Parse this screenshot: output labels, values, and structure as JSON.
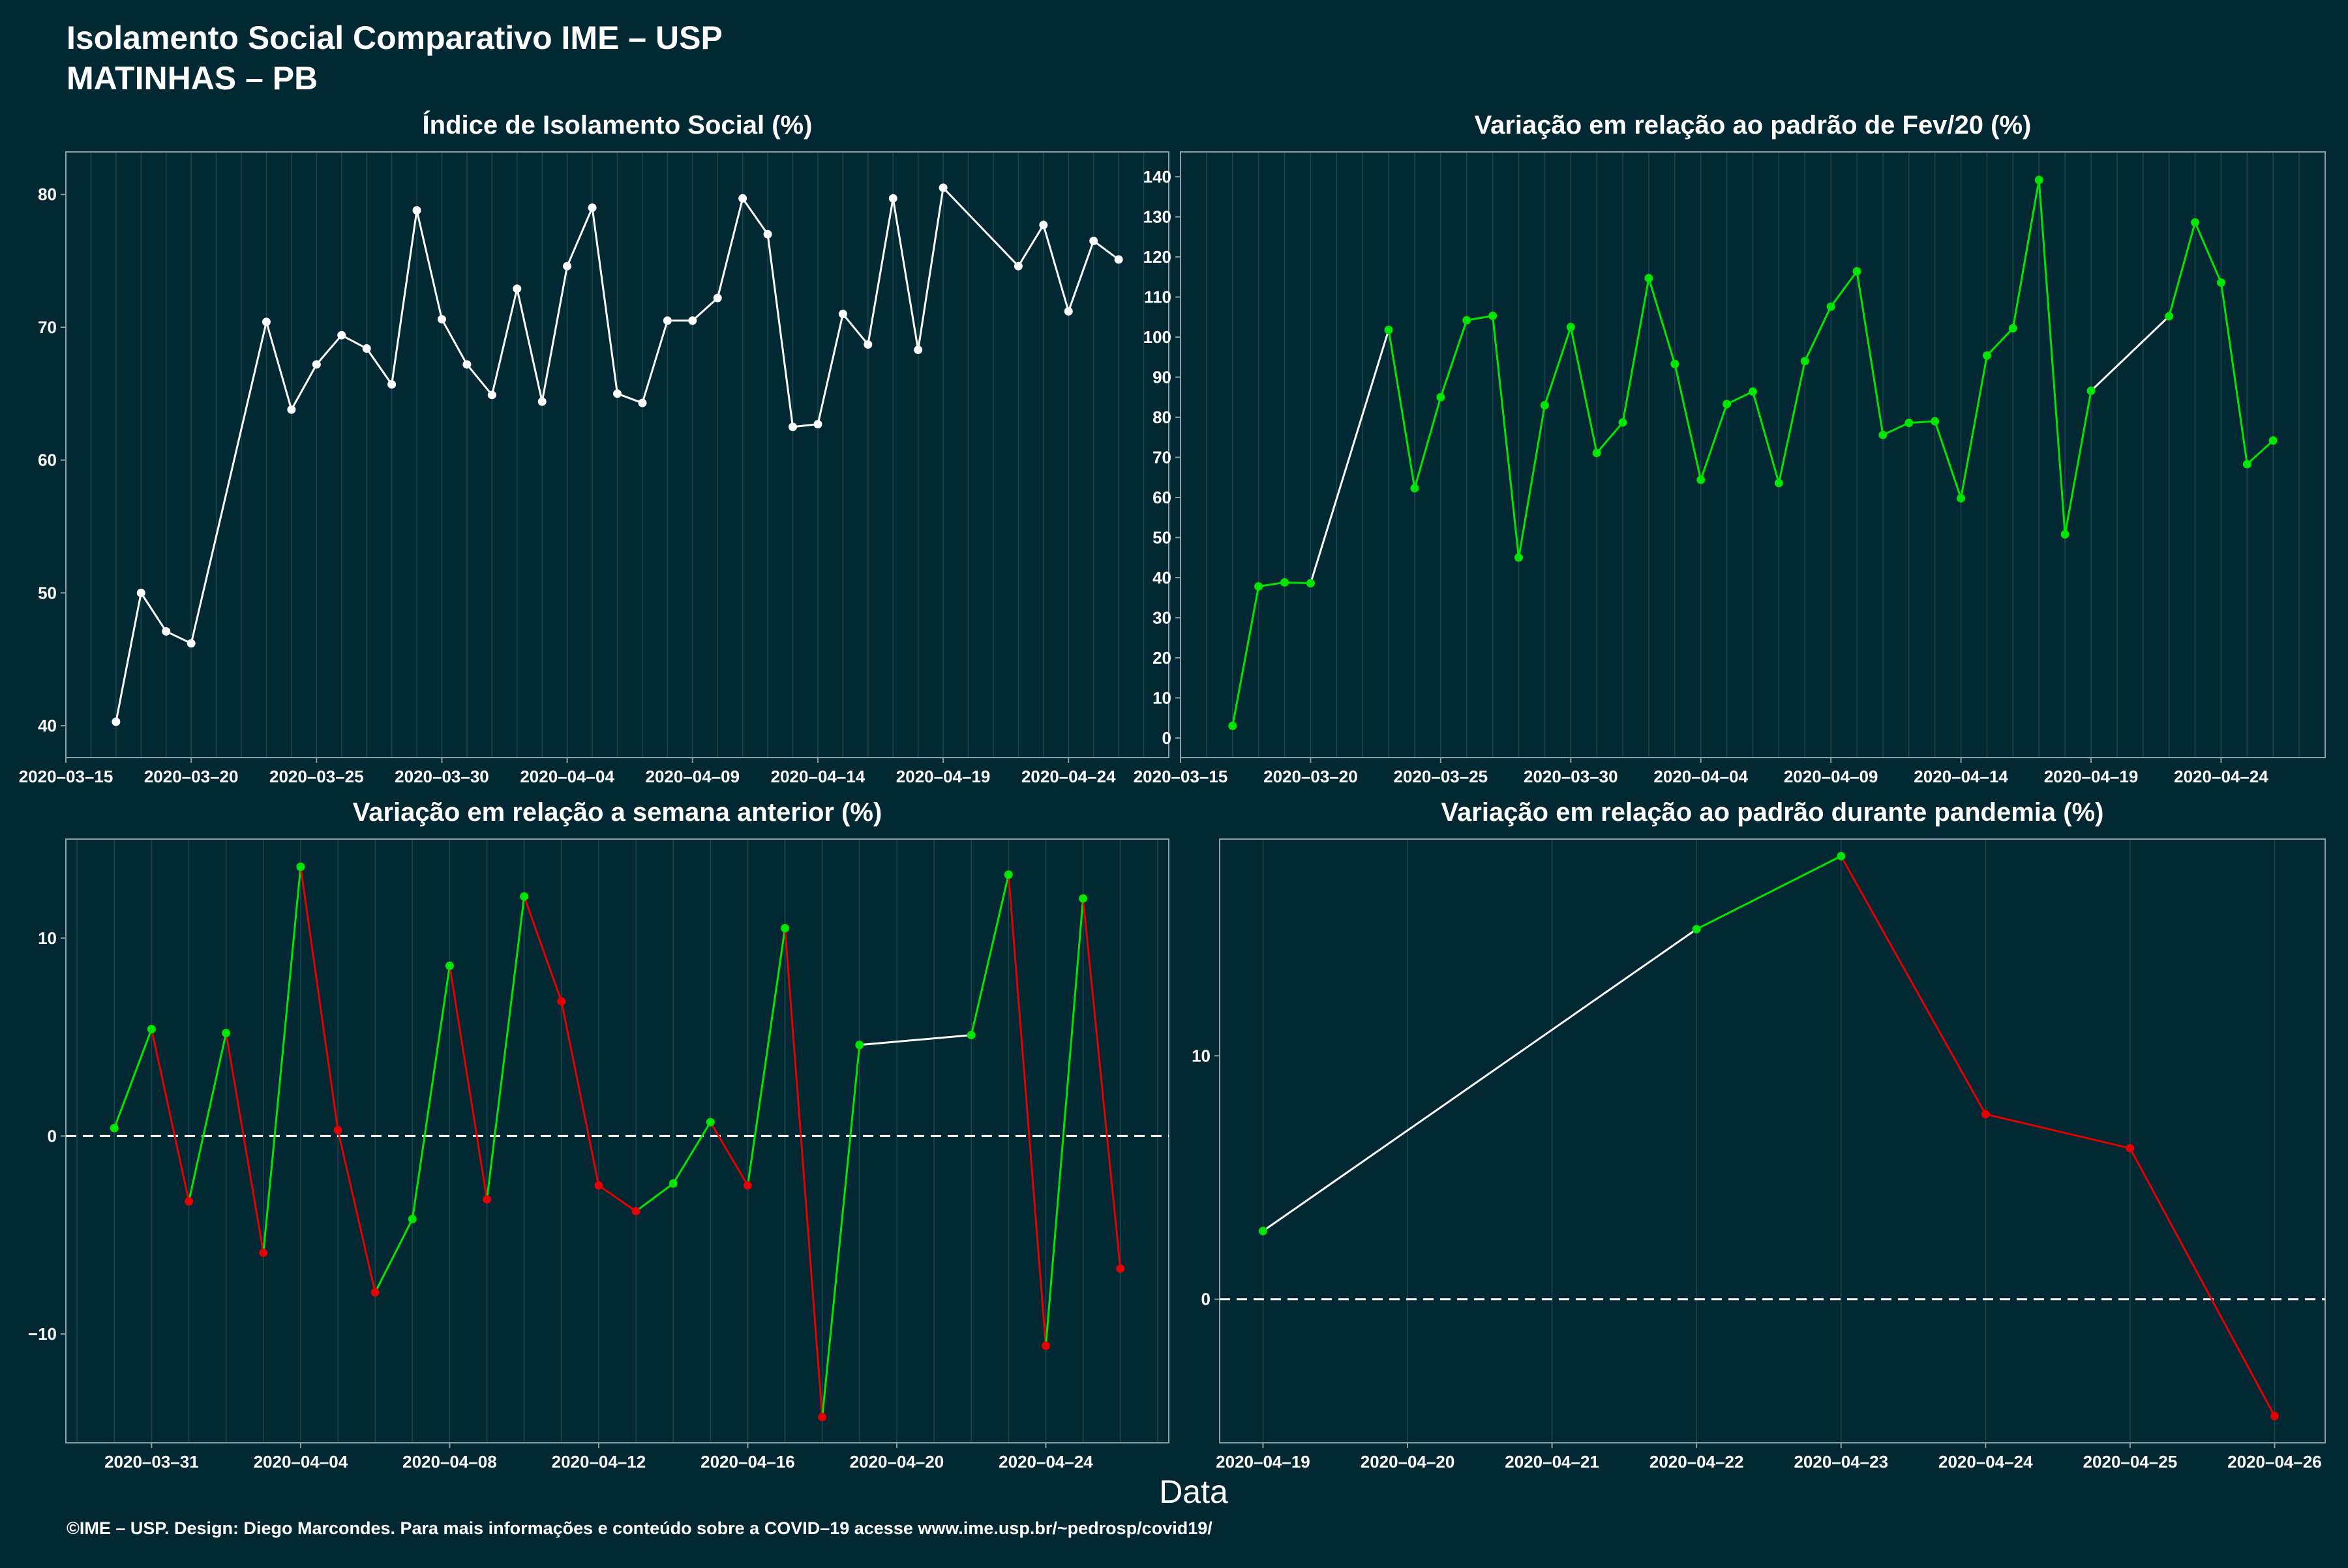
{
  "header": {
    "title": "Isolamento Social Comparativo IME – USP",
    "subtitle": "MATINHAS – PB"
  },
  "xlabel": "Data",
  "footer": "©IME – USP. Design: Diego Marcondes. Para mais informações e conteúdo sobre a COVID–19 acesse www.ime.usp.br/~pedrosp/covid19/",
  "colors": {
    "background": "#022833",
    "line": "#ffffff",
    "positive": "#00e600",
    "negative": "#e60000",
    "axis_text": "#ffffff",
    "grid": "#1d4550"
  },
  "chart_data": [
    {
      "type": "line",
      "title": "Índice de Isolamento Social (%)",
      "x": [
        "2020-03-17",
        "2020-03-18",
        "2020-03-19",
        "2020-03-20",
        "2020-03-23",
        "2020-03-24",
        "2020-03-25",
        "2020-03-26",
        "2020-03-27",
        "2020-03-28",
        "2020-03-29",
        "2020-03-30",
        "2020-03-31",
        "2020-04-01",
        "2020-04-02",
        "2020-04-03",
        "2020-04-04",
        "2020-04-05",
        "2020-04-06",
        "2020-04-07",
        "2020-04-08",
        "2020-04-09",
        "2020-04-10",
        "2020-04-11",
        "2020-04-12",
        "2020-04-13",
        "2020-04-14",
        "2020-04-15",
        "2020-04-16",
        "2020-04-17",
        "2020-04-18",
        "2020-04-19",
        "2020-04-22",
        "2020-04-23",
        "2020-04-24",
        "2020-04-25",
        "2020-04-26"
      ],
      "y": [
        40.3,
        50.0,
        47.1,
        46.2,
        70.4,
        63.8,
        67.2,
        69.4,
        68.4,
        65.7,
        78.8,
        70.6,
        67.2,
        64.9,
        72.9,
        64.4,
        74.6,
        79.0,
        65.0,
        64.3,
        70.5,
        70.5,
        72.2,
        79.7,
        77.0,
        62.5,
        62.7,
        71.0,
        68.7,
        79.7,
        68.3,
        80.5,
        74.6,
        77.7,
        71.2,
        76.5,
        75.1
      ],
      "xlim": [
        "2020-03-15",
        "2020-04-28"
      ],
      "ylim": [
        37.6,
        83.2
      ],
      "xticks": [
        "2020-03-15",
        "2020-03-20",
        "2020-03-25",
        "2020-03-30",
        "2020-04-04",
        "2020-04-09",
        "2020-04-14",
        "2020-04-19",
        "2020-04-24"
      ],
      "yticks": [
        40,
        50,
        60,
        70,
        80
      ]
    },
    {
      "type": "line",
      "title": "Variação em relação ao padrão de Fev/20 (%)",
      "x": [
        "2020-03-17",
        "2020-03-18",
        "2020-03-19",
        "2020-03-20",
        "2020-03-23",
        "2020-03-24",
        "2020-03-25",
        "2020-03-26",
        "2020-03-27",
        "2020-03-28",
        "2020-03-29",
        "2020-03-30",
        "2020-03-31",
        "2020-04-01",
        "2020-04-02",
        "2020-04-03",
        "2020-04-04",
        "2020-04-05",
        "2020-04-06",
        "2020-04-07",
        "2020-04-08",
        "2020-04-09",
        "2020-04-10",
        "2020-04-11",
        "2020-04-12",
        "2020-04-13",
        "2020-04-14",
        "2020-04-15",
        "2020-04-16",
        "2020-04-17",
        "2020-04-18",
        "2020-04-19",
        "2020-04-22",
        "2020-04-23",
        "2020-04-24",
        "2020-04-25",
        "2020-04-26"
      ],
      "y": [
        3.0,
        37.8,
        38.8,
        38.6,
        101.8,
        62.3,
        85.0,
        104.2,
        105.3,
        45.0,
        83.0,
        102.5,
        71.1,
        78.7,
        114.7,
        93.3,
        64.4,
        83.3,
        86.4,
        63.6,
        94.0,
        107.6,
        116.4,
        75.6,
        78.6,
        79.0,
        59.8,
        95.4,
        102.2,
        139.2,
        50.8,
        86.6,
        105.2,
        128.6,
        113.6,
        68.3,
        74.2
      ],
      "xlim": [
        "2020-03-15",
        "2020-04-28"
      ],
      "ylim": [
        -4.9,
        146.2
      ],
      "xticks": [
        "2020-03-15",
        "2020-03-20",
        "2020-03-25",
        "2020-03-30",
        "2020-04-04",
        "2020-04-09",
        "2020-04-14",
        "2020-04-19",
        "2020-04-24"
      ],
      "yticks": [
        0,
        10,
        20,
        30,
        40,
        50,
        60,
        70,
        80,
        90,
        100,
        110,
        120,
        130,
        140
      ]
    },
    {
      "type": "line",
      "title": "Variação em relação a semana anterior (%)",
      "x": [
        "2020-03-30",
        "2020-03-31",
        "2020-04-01",
        "2020-04-02",
        "2020-04-03",
        "2020-04-04",
        "2020-04-05",
        "2020-04-06",
        "2020-04-07",
        "2020-04-08",
        "2020-04-09",
        "2020-04-10",
        "2020-04-11",
        "2020-04-12",
        "2020-04-13",
        "2020-04-14",
        "2020-04-15",
        "2020-04-16",
        "2020-04-17",
        "2020-04-18",
        "2020-04-19",
        "2020-04-22",
        "2020-04-23",
        "2020-04-24",
        "2020-04-25",
        "2020-04-26"
      ],
      "y": [
        0.4,
        5.4,
        -3.3,
        5.2,
        -5.9,
        13.6,
        0.3,
        -7.9,
        -4.2,
        8.6,
        -3.2,
        12.1,
        6.8,
        -2.5,
        -3.8,
        -2.4,
        0.7,
        -2.5,
        10.5,
        -14.2,
        4.6,
        5.1,
        13.2,
        -10.6,
        12.0,
        -6.7
      ],
      "xlim": [
        "2020-03-28.7",
        "2020-04-27.3"
      ],
      "ylim": [
        -15.5,
        15.0
      ],
      "xticks": [
        "2020-03-31",
        "2020-04-04",
        "2020-04-08",
        "2020-04-12",
        "2020-04-16",
        "2020-04-20",
        "2020-04-24"
      ],
      "yticks": [
        -10,
        0,
        10
      ]
    },
    {
      "type": "line",
      "title": "Variação em relação ao padrão durante pandemia (%)",
      "x": [
        "2020-04-19",
        "2020-04-22",
        "2020-04-23",
        "2020-04-24",
        "2020-04-25",
        "2020-04-26"
      ],
      "y": [
        2.8,
        15.2,
        18.2,
        7.6,
        6.2,
        -4.8
      ],
      "xlim": [
        "2020-04-18.7",
        "2020-04-26.35"
      ],
      "ylim": [
        -5.9,
        18.9
      ],
      "xticks": [
        "2020-04-19",
        "2020-04-20",
        "2020-04-21",
        "2020-04-22",
        "2020-04-23",
        "2020-04-24",
        "2020-04-25",
        "2020-04-26"
      ],
      "yticks": [
        0,
        10
      ]
    }
  ]
}
